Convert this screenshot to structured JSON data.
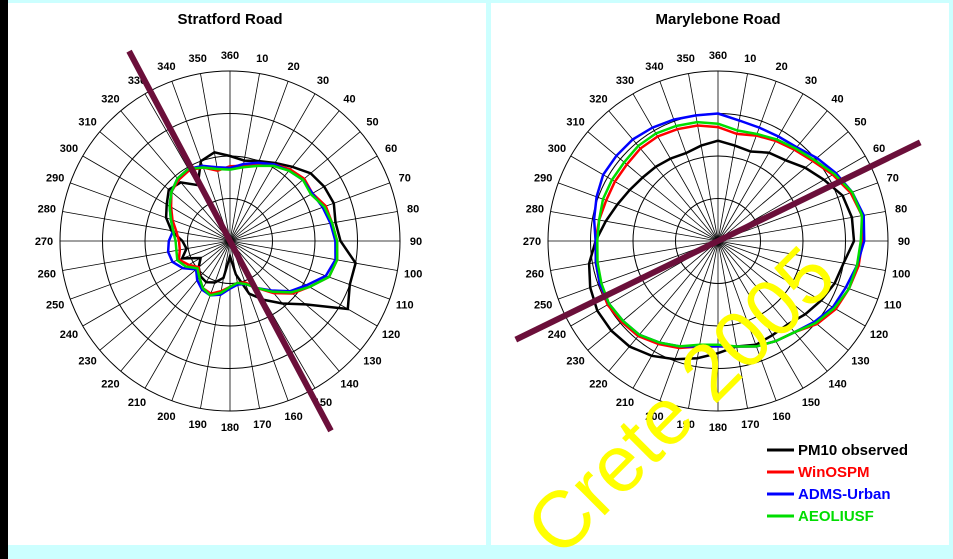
{
  "chart_data": [
    {
      "type": "polar-line",
      "title": "Stratford Road",
      "angle_ticks": [
        360,
        10,
        20,
        30,
        40,
        50,
        60,
        70,
        80,
        90,
        100,
        110,
        120,
        130,
        140,
        150,
        160,
        170,
        180,
        190,
        200,
        210,
        220,
        230,
        240,
        250,
        260,
        270,
        280,
        290,
        300,
        310,
        320,
        330,
        340,
        350
      ],
      "rmax": 1.0,
      "grid_rings": [
        0.25,
        0.5,
        0.75,
        1.0
      ],
      "wind_axis_deg": 332,
      "series": [
        {
          "name": "PM10 observed",
          "color": "#000000",
          "values": [
            0.5,
            0.48,
            0.5,
            0.53,
            0.57,
            0.62,
            0.64,
            0.65,
            0.63,
            0.65,
            0.75,
            0.75,
            0.8,
            0.58,
            0.48,
            0.4,
            0.33,
            0.2,
            0.09,
            0.22,
            0.26,
            0.28,
            0.27,
            0.24,
            0.2,
            0.3,
            0.26,
            0.28,
            0.35,
            0.4,
            0.43,
            0.47,
            0.45,
            0.38,
            0.5,
            0.53
          ]
        },
        {
          "name": "WinOSPM",
          "color": "#ff0000",
          "values": [
            0.44,
            0.45,
            0.48,
            0.52,
            0.55,
            0.57,
            0.56,
            0.6,
            0.61,
            0.63,
            0.64,
            0.62,
            0.54,
            0.48,
            0.4,
            0.32,
            0.26,
            0.25,
            0.27,
            0.3,
            0.33,
            0.32,
            0.28,
            0.24,
            0.28,
            0.32,
            0.3,
            0.3,
            0.32,
            0.36,
            0.4,
            0.45,
            0.47,
            0.48,
            0.46,
            0.42
          ]
        },
        {
          "name": "ADMS-Urban",
          "color": "#0000ff",
          "values": [
            0.43,
            0.46,
            0.49,
            0.52,
            0.54,
            0.56,
            0.56,
            0.58,
            0.6,
            0.62,
            0.63,
            0.6,
            0.52,
            0.46,
            0.38,
            0.32,
            0.27,
            0.26,
            0.28,
            0.32,
            0.34,
            0.33,
            0.3,
            0.26,
            0.32,
            0.36,
            0.37,
            0.36,
            0.34,
            0.37,
            0.41,
            0.45,
            0.48,
            0.49,
            0.47,
            0.44
          ]
        },
        {
          "name": "AEOLIUSF",
          "color": "#00dd00",
          "values": [
            0.42,
            0.44,
            0.47,
            0.51,
            0.54,
            0.56,
            0.55,
            0.59,
            0.61,
            0.63,
            0.64,
            0.62,
            0.54,
            0.47,
            0.39,
            0.32,
            0.27,
            0.25,
            0.27,
            0.31,
            0.34,
            0.32,
            0.28,
            0.25,
            0.3,
            0.33,
            0.32,
            0.32,
            0.34,
            0.37,
            0.41,
            0.45,
            0.48,
            0.49,
            0.46,
            0.43
          ]
        }
      ]
    },
    {
      "type": "polar-line",
      "title": "Marylebone Road",
      "angle_ticks": [
        360,
        10,
        20,
        30,
        40,
        50,
        60,
        70,
        80,
        90,
        100,
        110,
        120,
        130,
        140,
        150,
        160,
        170,
        180,
        190,
        200,
        210,
        220,
        230,
        240,
        250,
        260,
        270,
        280,
        290,
        300,
        310,
        320,
        330,
        340,
        350
      ],
      "rmax": 1.0,
      "grid_rings": [
        0.25,
        0.5,
        0.75,
        1.0
      ],
      "wind_axis_deg": 64,
      "series": [
        {
          "name": "PM10 observed",
          "color": "#000000",
          "values": [
            0.59,
            0.57,
            0.56,
            0.6,
            0.62,
            0.67,
            0.72,
            0.78,
            0.8,
            0.8,
            0.75,
            0.73,
            0.7,
            0.67,
            0.64,
            0.64,
            0.65,
            0.63,
            0.66,
            0.7,
            0.74,
            0.78,
            0.81,
            0.82,
            0.82,
            0.8,
            0.77,
            0.72,
            0.67,
            0.63,
            0.6,
            0.58,
            0.57,
            0.56,
            0.55,
            0.57
          ]
        },
        {
          "name": "WinOSPM",
          "color": "#ff0000",
          "values": [
            0.67,
            0.64,
            0.66,
            0.68,
            0.7,
            0.73,
            0.78,
            0.83,
            0.86,
            0.85,
            0.84,
            0.82,
            0.8,
            0.76,
            0.7,
            0.68,
            0.66,
            0.63,
            0.62,
            0.63,
            0.67,
            0.7,
            0.73,
            0.74,
            0.75,
            0.74,
            0.73,
            0.72,
            0.71,
            0.7,
            0.7,
            0.7,
            0.71,
            0.71,
            0.7,
            0.69
          ]
        },
        {
          "name": "ADMS-Urban",
          "color": "#0000ff",
          "values": [
            0.75,
            0.72,
            0.71,
            0.71,
            0.72,
            0.76,
            0.8,
            0.84,
            0.87,
            0.86,
            0.83,
            0.8,
            0.78,
            0.74,
            0.7,
            0.68,
            0.66,
            0.63,
            0.62,
            0.63,
            0.66,
            0.69,
            0.72,
            0.73,
            0.74,
            0.74,
            0.73,
            0.72,
            0.74,
            0.76,
            0.78,
            0.78,
            0.78,
            0.77,
            0.76,
            0.75
          ]
        },
        {
          "name": "AEOLIUSF",
          "color": "#00dd00",
          "values": [
            0.69,
            0.66,
            0.67,
            0.69,
            0.71,
            0.74,
            0.79,
            0.84,
            0.86,
            0.84,
            0.83,
            0.82,
            0.79,
            0.75,
            0.7,
            0.68,
            0.66,
            0.63,
            0.61,
            0.62,
            0.66,
            0.69,
            0.72,
            0.73,
            0.74,
            0.73,
            0.72,
            0.71,
            0.71,
            0.72,
            0.72,
            0.72,
            0.73,
            0.73,
            0.72,
            0.71
          ]
        }
      ]
    }
  ],
  "legend": [
    {
      "label": "PM10 observed",
      "color": "#000000"
    },
    {
      "label": "WinOSPM",
      "color": "#ff0000"
    },
    {
      "label": "ADMS-Urban",
      "color": "#0000ff"
    },
    {
      "label": "AEOLIUSF",
      "color": "#00dd00"
    }
  ],
  "axis_line_color": "#6b0f3a",
  "watermark": "Crete 2005"
}
